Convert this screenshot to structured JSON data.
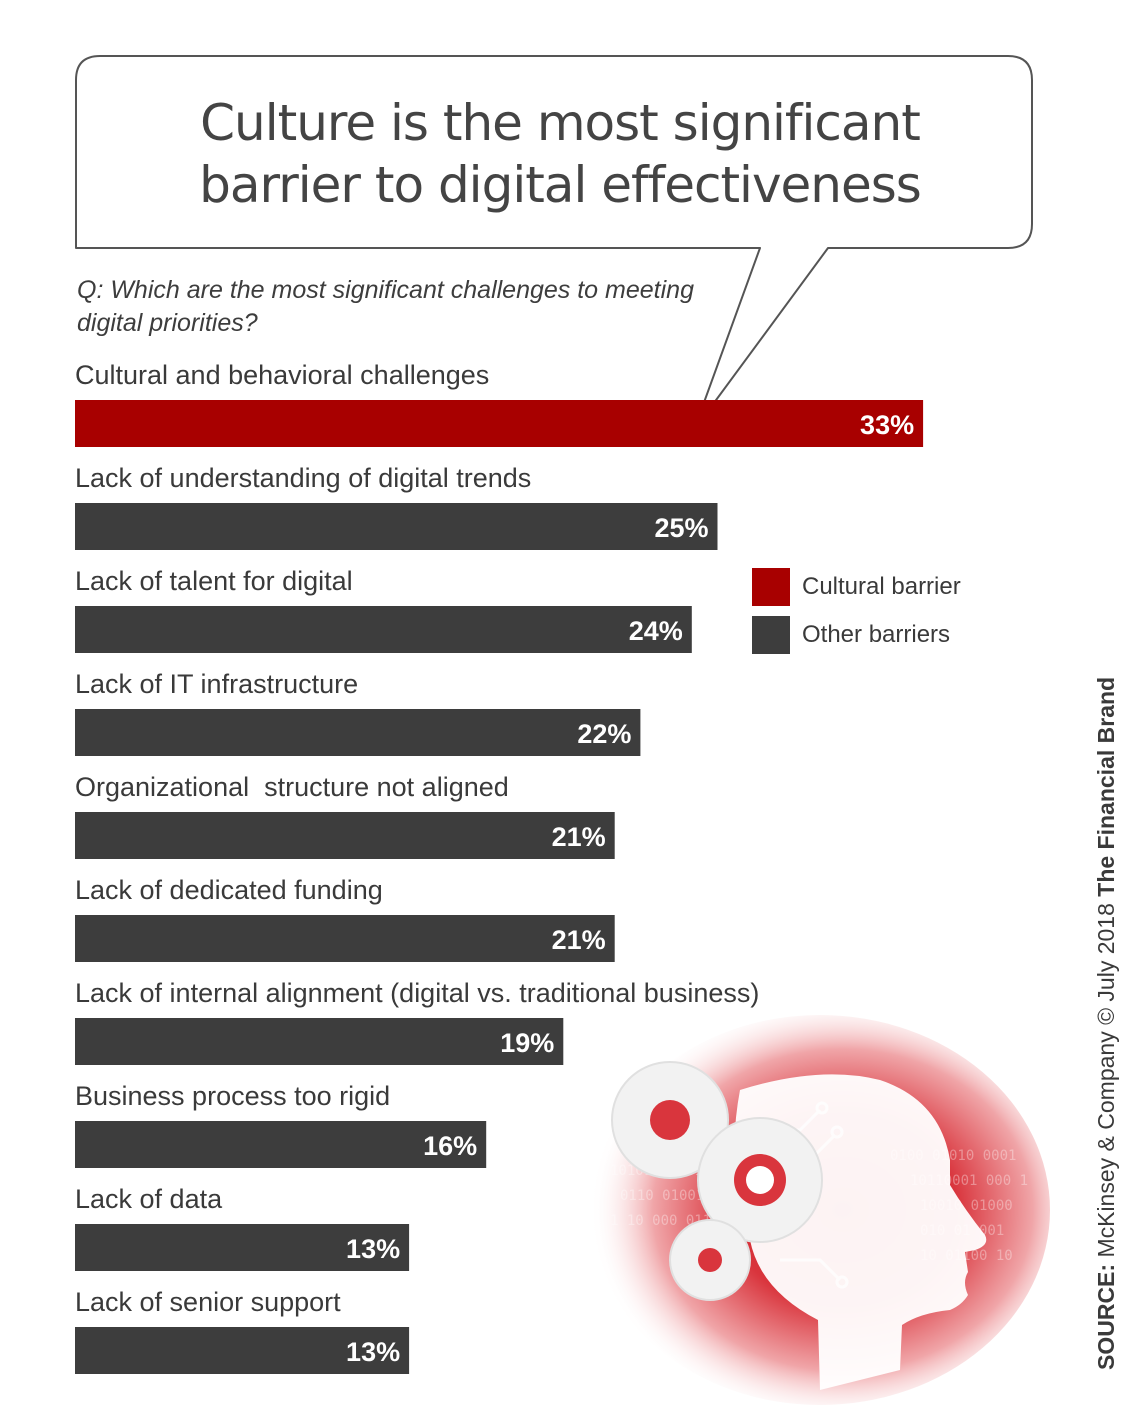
{
  "colors": {
    "cultural": "#a80000",
    "other": "#3d3d3d",
    "accent": "#cc1f26"
  },
  "title_lines": [
    "Culture is the most significant",
    "barrier to digital effectiveness"
  ],
  "question": "Q: Which are the most significant challenges to meeting digital priorities?",
  "legend": [
    {
      "label": "Cultural barrier",
      "color": "#a80000"
    },
    {
      "label": "Other barriers",
      "color": "#3d3d3d"
    }
  ],
  "source": {
    "prefix": "SOURCE:",
    "text": " McKinsey & Company © July 2018 ",
    "brand": "The Financial Brand"
  },
  "illustration": {
    "icon": "ai-head-with-gears-icon"
  },
  "chart_data": {
    "type": "bar",
    "orientation": "horizontal",
    "title": "Culture is the most significant barrier to digital effectiveness",
    "subtitle": "Q: Which are the most significant challenges to meeting digital priorities?",
    "unit": "%",
    "categories": [
      "Cultural and behavioral challenges",
      "Lack of understanding of digital trends",
      "Lack of talent for digital",
      "Lack of IT infrastructure",
      "Organizational  structure not aligned",
      "Lack of dedicated funding",
      "Lack of internal alignment (digital vs. traditional business)",
      "Business process too rigid",
      "Lack of data",
      "Lack of senior support"
    ],
    "values": [
      33,
      25,
      24,
      22,
      21,
      21,
      19,
      16,
      13,
      13
    ],
    "value_labels": [
      "33%",
      "25%",
      "24%",
      "22%",
      "21%",
      "21%",
      "19%",
      "16%",
      "13%",
      "13%"
    ],
    "barrier_type": [
      "Cultural barrier",
      "Other barriers",
      "Other barriers",
      "Other barriers",
      "Other barriers",
      "Other barriers",
      "Other barriers",
      "Other barriers",
      "Other barriers",
      "Other barriers"
    ],
    "legend_position": "right",
    "grid": false
  }
}
